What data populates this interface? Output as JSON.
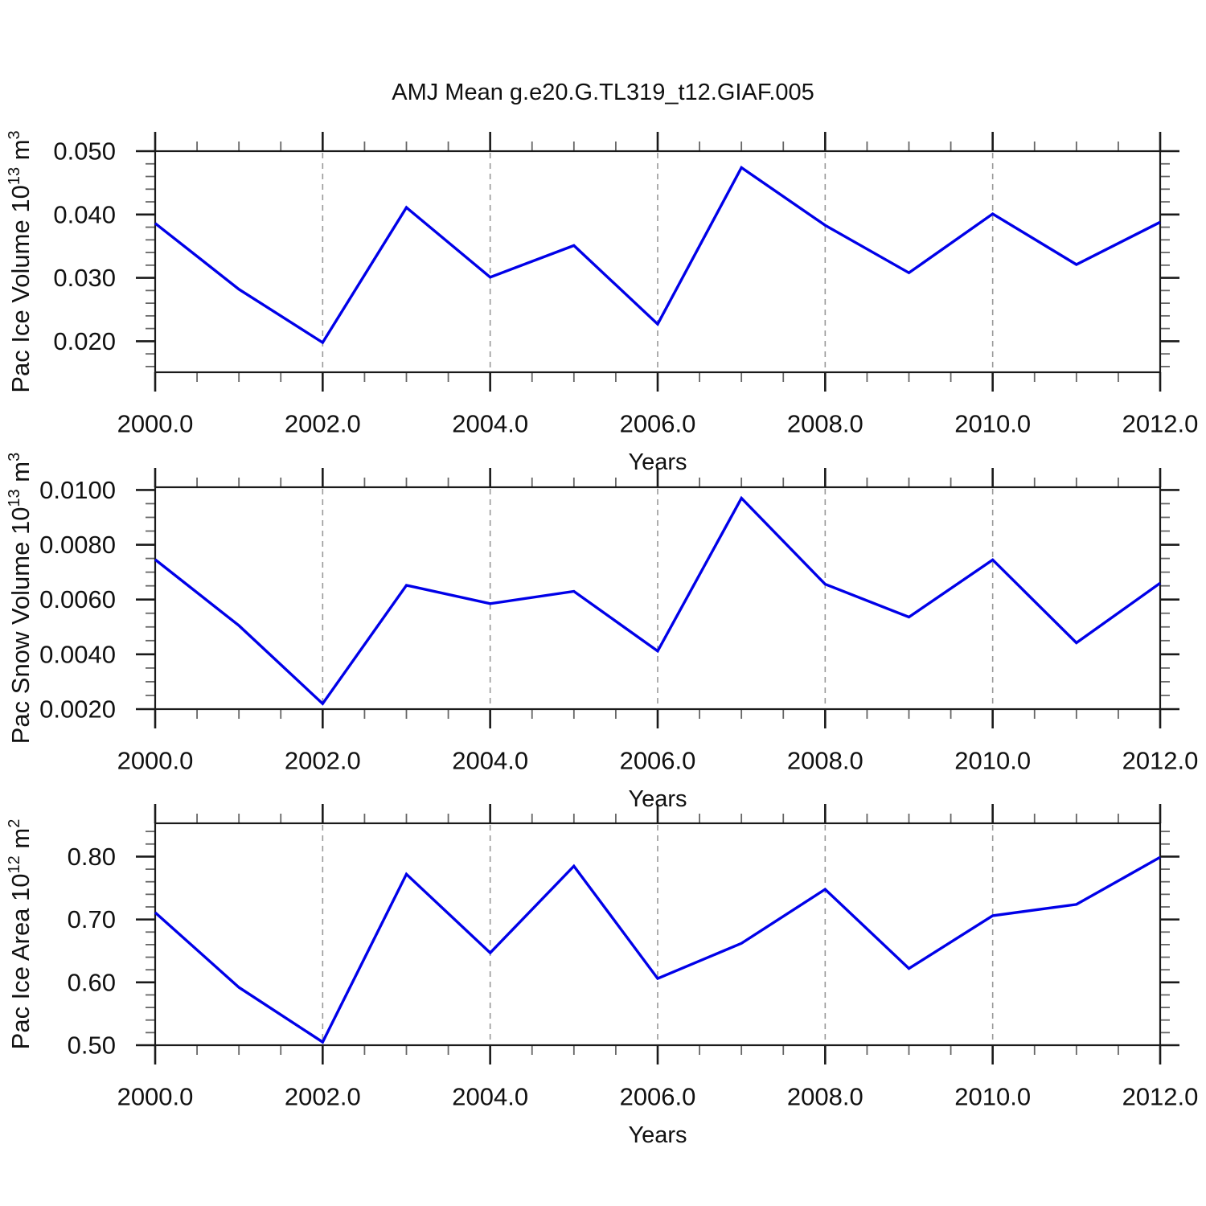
{
  "title": "AMJ Mean g.e20.G.TL319_t12.GIAF.005",
  "colors": {
    "line": "#0000e8",
    "frame": "#1a1a1a",
    "major_tick": "#1a1a1a",
    "minor_tick": "#666666",
    "gridline": "#999999",
    "text": "#111111",
    "background": "#ffffff"
  },
  "chart_data": [
    {
      "id": "pac-ice-volume",
      "type": "line",
      "title": "Pac Ice Volume",
      "ylabel": "Pac Ice Volume 10^13^ m^3^",
      "xlabel": "Years",
      "x": [
        2000,
        2001,
        2002,
        2003,
        2004,
        2005,
        2006,
        2007,
        2008,
        2009,
        2010,
        2011,
        2012
      ],
      "values": [
        0.0386,
        0.0282,
        0.0198,
        0.0411,
        0.0301,
        0.0351,
        0.0227,
        0.0474,
        0.0383,
        0.0308,
        0.0401,
        0.0321,
        0.0388
      ],
      "xlim": [
        2000,
        2012
      ],
      "ylim": [
        0.0151,
        0.05
      ],
      "xticks": [
        2000,
        2002,
        2004,
        2006,
        2008,
        2010,
        2012
      ],
      "xtick_labels": [
        "2000.0",
        "2002.0",
        "2004.0",
        "2006.0",
        "2008.0",
        "2010.0",
        "2012.0"
      ],
      "x_minor_step": 0.5,
      "yticks": [
        0.05,
        0.04,
        0.03,
        0.02
      ],
      "ytick_labels": [
        "0.050",
        "0.040",
        "0.030",
        "0.020"
      ],
      "y_minor_step": 0.002,
      "grid_x": [
        2002,
        2004,
        2006,
        2008,
        2010
      ],
      "legend": "none",
      "grid": "dashed-vertical-only"
    },
    {
      "id": "pac-snow-volume",
      "type": "line",
      "title": "Pac Snow Volume",
      "ylabel": "Pac Snow Volume 10^13^ m^3^",
      "xlabel": "Years",
      "x": [
        2000,
        2001,
        2002,
        2003,
        2004,
        2005,
        2006,
        2007,
        2008,
        2009,
        2010,
        2011,
        2012
      ],
      "values": [
        0.00746,
        0.00505,
        0.0022,
        0.00652,
        0.00585,
        0.0063,
        0.00412,
        0.0097,
        0.00656,
        0.00536,
        0.00745,
        0.00442,
        0.0066
      ],
      "xlim": [
        2000,
        2012
      ],
      "ylim": [
        0.002,
        0.0101
      ],
      "xticks": [
        2000,
        2002,
        2004,
        2006,
        2008,
        2010,
        2012
      ],
      "xtick_labels": [
        "2000.0",
        "2002.0",
        "2004.0",
        "2006.0",
        "2008.0",
        "2010.0",
        "2012.0"
      ],
      "x_minor_step": 0.5,
      "yticks": [
        0.01,
        0.008,
        0.006,
        0.004,
        0.002
      ],
      "ytick_labels": [
        "0.0100",
        "0.0080",
        "0.0060",
        "0.0040",
        "0.0020"
      ],
      "y_minor_step": 0.0005,
      "grid_x": [
        2002,
        2004,
        2006,
        2008,
        2010
      ],
      "legend": "none",
      "grid": "dashed-vertical-only"
    },
    {
      "id": "pac-ice-area",
      "type": "line",
      "title": "Pac Ice Area",
      "ylabel": "Pac Ice Area 10^12^ m^2^",
      "xlabel": "Years",
      "x": [
        2000,
        2001,
        2002,
        2003,
        2004,
        2005,
        2006,
        2007,
        2008,
        2009,
        2010,
        2011,
        2012
      ],
      "values": [
        0.711,
        0.592,
        0.505,
        0.772,
        0.647,
        0.785,
        0.606,
        0.662,
        0.748,
        0.622,
        0.706,
        0.724,
        0.799
      ],
      "xlim": [
        2000,
        2012
      ],
      "ylim": [
        0.5,
        0.853
      ],
      "xticks": [
        2000,
        2002,
        2004,
        2006,
        2008,
        2010,
        2012
      ],
      "xtick_labels": [
        "2000.0",
        "2002.0",
        "2004.0",
        "2006.0",
        "2008.0",
        "2010.0",
        "2012.0"
      ],
      "x_minor_step": 0.5,
      "yticks": [
        0.8,
        0.7,
        0.6,
        0.5
      ],
      "ytick_labels": [
        "0.80",
        "0.70",
        "0.60",
        "0.50"
      ],
      "y_minor_step": 0.02,
      "grid_x": [
        2002,
        2004,
        2006,
        2008,
        2010
      ],
      "legend": "none",
      "grid": "dashed-vertical-only"
    }
  ]
}
